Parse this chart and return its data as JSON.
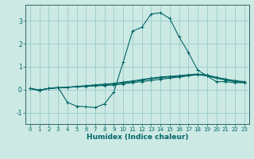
{
  "title": "",
  "xlabel": "Humidex (Indice chaleur)",
  "ylabel": "",
  "background_color": "#cce9e4",
  "grid_color": "#99cccc",
  "line_color": "#006666",
  "spine_color": "#336666",
  "xlim": [
    -0.5,
    23.5
  ],
  "ylim": [
    -1.5,
    3.7
  ],
  "yticks": [
    -1,
    0,
    1,
    2,
    3
  ],
  "xticks": [
    0,
    1,
    2,
    3,
    4,
    5,
    6,
    7,
    8,
    9,
    10,
    11,
    12,
    13,
    14,
    15,
    16,
    17,
    18,
    19,
    20,
    21,
    22,
    23
  ],
  "curves": [
    {
      "x": [
        0,
        1,
        2,
        3,
        4,
        5,
        6,
        7,
        8,
        9,
        10,
        11,
        12,
        13,
        14,
        15,
        16,
        17,
        18,
        19,
        20,
        21,
        22,
        23
      ],
      "y": [
        0.05,
        -0.05,
        0.05,
        0.1,
        -0.55,
        -0.72,
        -0.75,
        -0.78,
        -0.62,
        -0.1,
        1.2,
        2.55,
        2.72,
        3.3,
        3.35,
        3.1,
        2.3,
        1.62,
        0.85,
        0.6,
        0.35,
        0.35,
        0.3,
        0.3
      ]
    },
    {
      "x": [
        0,
        1,
        2,
        3,
        4,
        5,
        6,
        7,
        8,
        9,
        10,
        11,
        12,
        13,
        14,
        15,
        16,
        17,
        18,
        19,
        20,
        21,
        22,
        23
      ],
      "y": [
        0.05,
        -0.02,
        0.05,
        0.08,
        0.1,
        0.12,
        0.14,
        0.16,
        0.18,
        0.2,
        0.25,
        0.3,
        0.35,
        0.4,
        0.45,
        0.5,
        0.55,
        0.6,
        0.65,
        0.6,
        0.5,
        0.42,
        0.35,
        0.32
      ]
    },
    {
      "x": [
        0,
        1,
        2,
        3,
        4,
        5,
        6,
        7,
        8,
        9,
        10,
        11,
        12,
        13,
        14,
        15,
        16,
        17,
        18,
        19,
        20,
        21,
        22,
        23
      ],
      "y": [
        0.05,
        -0.02,
        0.05,
        0.08,
        0.1,
        0.13,
        0.16,
        0.19,
        0.22,
        0.24,
        0.3,
        0.35,
        0.41,
        0.47,
        0.52,
        0.55,
        0.58,
        0.62,
        0.66,
        0.62,
        0.52,
        0.44,
        0.37,
        0.33
      ]
    },
    {
      "x": [
        0,
        1,
        2,
        3,
        4,
        5,
        6,
        7,
        8,
        9,
        10,
        11,
        12,
        13,
        14,
        15,
        16,
        17,
        18,
        19,
        20,
        21,
        22,
        23
      ],
      "y": [
        0.05,
        -0.02,
        0.05,
        0.08,
        0.1,
        0.14,
        0.17,
        0.21,
        0.24,
        0.27,
        0.33,
        0.38,
        0.44,
        0.5,
        0.55,
        0.58,
        0.61,
        0.65,
        0.68,
        0.64,
        0.54,
        0.46,
        0.39,
        0.35
      ]
    }
  ]
}
